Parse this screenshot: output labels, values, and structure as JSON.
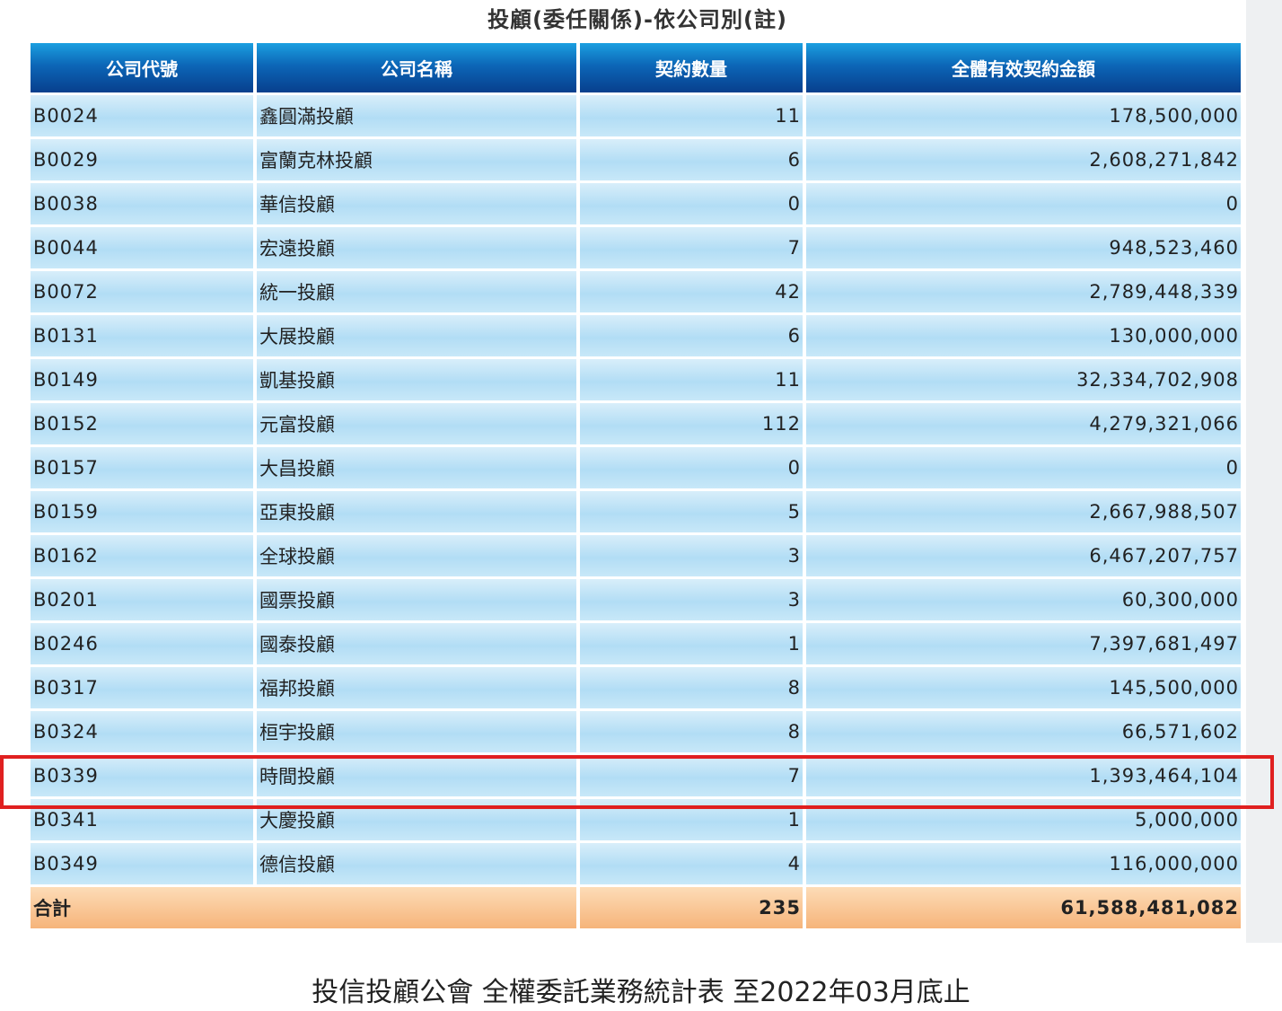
{
  "title": "投顧(委任關係)-依公司別(註)",
  "table": {
    "headers": [
      "公司代號",
      "公司名稱",
      "契約數量",
      "全體有效契約金額"
    ],
    "rows": [
      {
        "code": "B0024",
        "name": "鑫圓滿投顧",
        "count": "11",
        "amount": "178,500,000"
      },
      {
        "code": "B0029",
        "name": "富蘭克林投顧",
        "count": "6",
        "amount": "2,608,271,842"
      },
      {
        "code": "B0038",
        "name": "華信投顧",
        "count": "0",
        "amount": "0"
      },
      {
        "code": "B0044",
        "name": "宏遠投顧",
        "count": "7",
        "amount": "948,523,460"
      },
      {
        "code": "B0072",
        "name": "統一投顧",
        "count": "42",
        "amount": "2,789,448,339"
      },
      {
        "code": "B0131",
        "name": "大展投顧",
        "count": "6",
        "amount": "130,000,000"
      },
      {
        "code": "B0149",
        "name": "凱基投顧",
        "count": "11",
        "amount": "32,334,702,908"
      },
      {
        "code": "B0152",
        "name": "元富投顧",
        "count": "112",
        "amount": "4,279,321,066"
      },
      {
        "code": "B0157",
        "name": "大昌投顧",
        "count": "0",
        "amount": "0"
      },
      {
        "code": "B0159",
        "name": "亞東投顧",
        "count": "5",
        "amount": "2,667,988,507"
      },
      {
        "code": "B0162",
        "name": "全球投顧",
        "count": "3",
        "amount": "6,467,207,757"
      },
      {
        "code": "B0201",
        "name": "國票投顧",
        "count": "3",
        "amount": "60,300,000"
      },
      {
        "code": "B0246",
        "name": "國泰投顧",
        "count": "1",
        "amount": "7,397,681,497"
      },
      {
        "code": "B0317",
        "name": "福邦投顧",
        "count": "8",
        "amount": "145,500,000"
      },
      {
        "code": "B0324",
        "name": "桓宇投顧",
        "count": "8",
        "amount": "66,571,602"
      },
      {
        "code": "B0339",
        "name": "時間投顧",
        "count": "7",
        "amount": "1,393,464,104"
      },
      {
        "code": "B0341",
        "name": "大慶投顧",
        "count": "1",
        "amount": "5,000,000"
      },
      {
        "code": "B0349",
        "name": "德信投顧",
        "count": "4",
        "amount": "116,000,000"
      }
    ],
    "total": {
      "label": "合計",
      "count": "235",
      "amount": "61,588,481,082"
    }
  },
  "highlight": {
    "code": "B0339",
    "color": "#e02020"
  },
  "caption": "投信投顧公會 全權委託業務統計表 至2022年03月底止",
  "colors": {
    "header_top": "#1b9fe0",
    "header_bottom": "#073f8d",
    "row_bg": "#b2ddf5",
    "total_bg": "#f6b47a"
  }
}
